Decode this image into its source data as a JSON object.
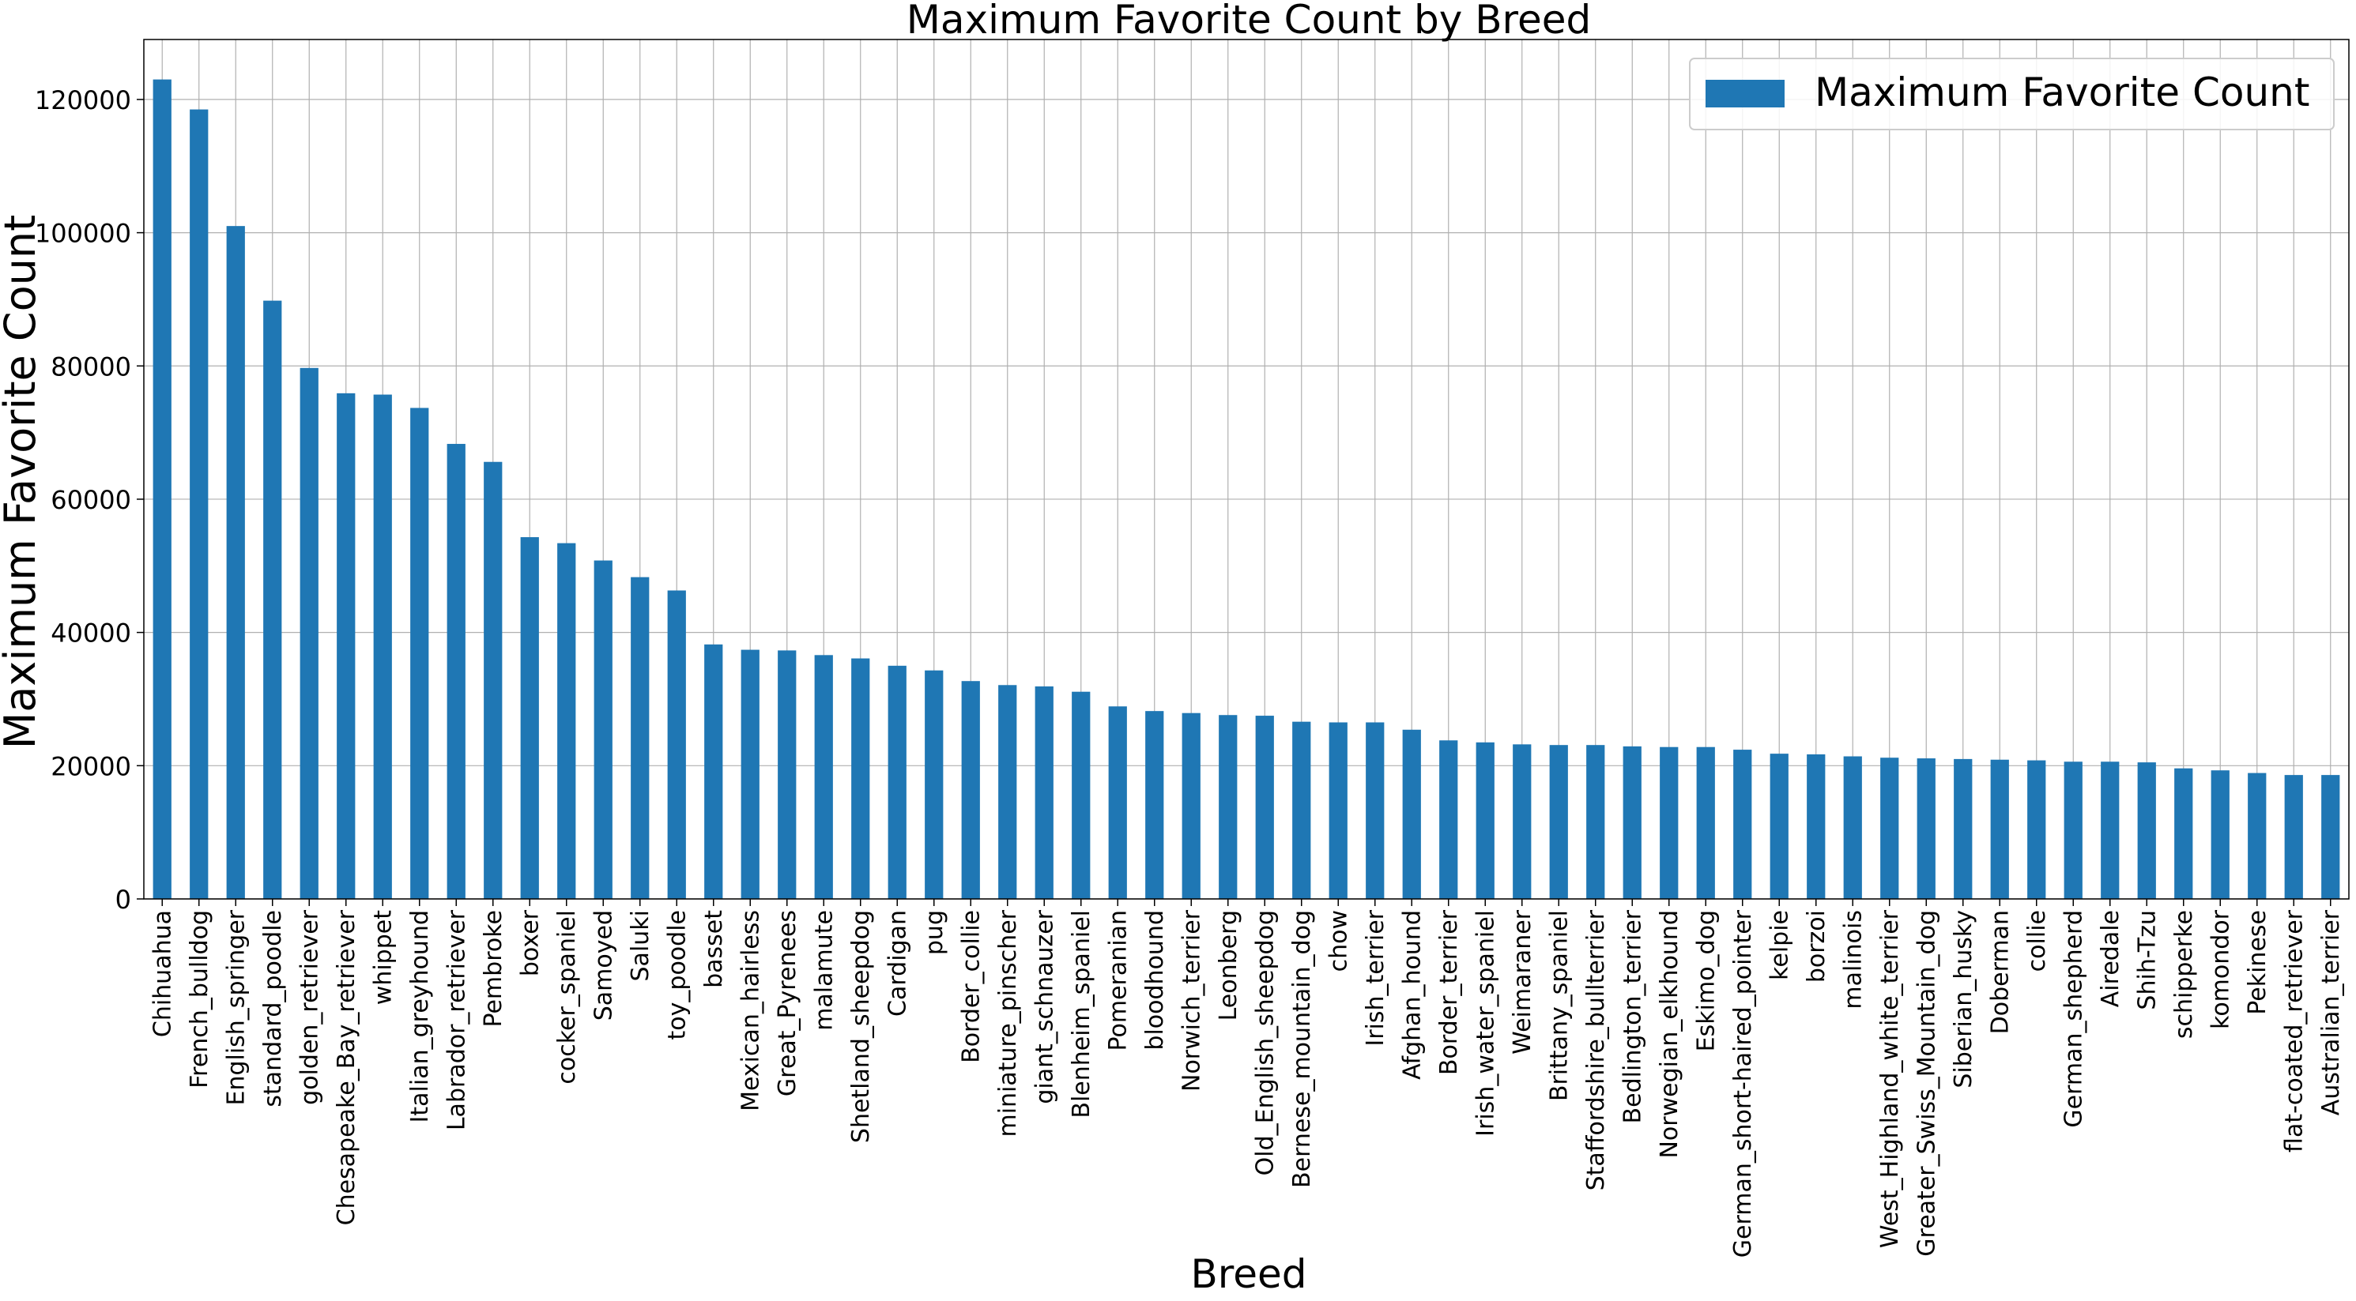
{
  "chart_data": {
    "type": "bar",
    "title": "Maximum Favorite Count by Breed",
    "xlabel": "Breed",
    "ylabel": "Maximum Favorite Count",
    "ylim": [
      0,
      129000
    ],
    "yticks": [
      0,
      20000,
      40000,
      60000,
      80000,
      100000,
      120000
    ],
    "grid": true,
    "legend_position": "top-right",
    "bar_color": "#1f77b4",
    "categories": [
      "Chihuahua",
      "French_bulldog",
      "English_springer",
      "standard_poodle",
      "golden_retriever",
      "Chesapeake_Bay_retriever",
      "whippet",
      "Italian_greyhound",
      "Labrador_retriever",
      "Pembroke",
      "boxer",
      "cocker_spaniel",
      "Samoyed",
      "Saluki",
      "toy_poodle",
      "basset",
      "Mexican_hairless",
      "Great_Pyrenees",
      "malamute",
      "Shetland_sheepdog",
      "Cardigan",
      "pug",
      "Border_collie",
      "miniature_pinscher",
      "giant_schnauzer",
      "Blenheim_spaniel",
      "Pomeranian",
      "bloodhound",
      "Norwich_terrier",
      "Leonberg",
      "Old_English_sheepdog",
      "Bernese_mountain_dog",
      "chow",
      "Irish_terrier",
      "Afghan_hound",
      "Border_terrier",
      "Irish_water_spaniel",
      "Weimaraner",
      "Brittany_spaniel",
      "Staffordshire_bullterrier",
      "Bedlington_terrier",
      "Norwegian_elkhound",
      "Eskimo_dog",
      "German_short-haired_pointer",
      "kelpie",
      "borzoi",
      "malinois",
      "West_Highland_white_terrier",
      "Greater_Swiss_Mountain_dog",
      "Siberian_husky",
      "Doberman",
      "collie",
      "German_shepherd",
      "Airedale",
      "Shih-Tzu",
      "schipperke",
      "komondor",
      "Pekinese",
      "flat-coated_retriever",
      "Australian_terrier"
    ],
    "series": [
      {
        "name": "Maximum Favorite Count",
        "values": [
          123000,
          118500,
          101000,
          89800,
          79700,
          75900,
          75700,
          73700,
          68300,
          65600,
          54300,
          53400,
          50800,
          48300,
          46300,
          38200,
          37400,
          37300,
          36600,
          36100,
          35000,
          34300,
          32700,
          32100,
          31900,
          31100,
          28900,
          28200,
          27900,
          27600,
          27500,
          26600,
          26500,
          26500,
          25400,
          23800,
          23500,
          23200,
          23100,
          23100,
          22900,
          22800,
          22800,
          22400,
          21800,
          21700,
          21400,
          21200,
          21100,
          21000,
          20900,
          20800,
          20600,
          20600,
          20500,
          19600,
          19300,
          18900,
          18600,
          18600
        ]
      }
    ]
  }
}
